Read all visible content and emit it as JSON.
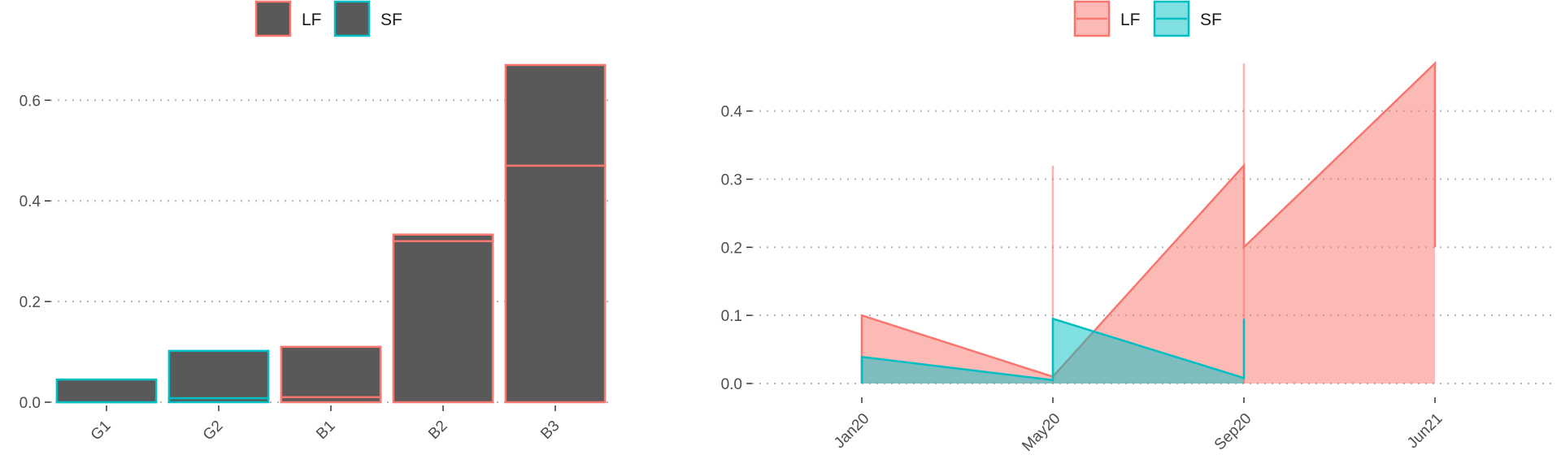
{
  "chart_data": [
    {
      "type": "bar",
      "stacked": true,
      "categories": [
        "G1",
        "G2",
        "B1",
        "B2",
        "B3"
      ],
      "series": [
        {
          "name": "LF",
          "values": [
            0.0,
            0.0,
            0.01,
            0.32,
            0.47
          ],
          "color": "#F8766D"
        },
        {
          "name": "SF",
          "values": [
            0.045,
            0.102,
            0.0,
            0.0,
            0.0
          ],
          "color": "#00BFC4"
        }
      ],
      "segments": [
        [
          {
            "series": "SF",
            "from": 0.0,
            "to": 0.0
          },
          {
            "series": "SF",
            "from": 0.0,
            "to": 0.045
          }
        ],
        [
          {
            "series": "SF",
            "from": 0.0,
            "to": 0.008
          },
          {
            "series": "SF",
            "from": 0.008,
            "to": 0.102
          }
        ],
        [
          {
            "series": "LF",
            "from": 0.0,
            "to": 0.01
          },
          {
            "series": "LF",
            "from": 0.01,
            "to": 0.11
          }
        ],
        [
          {
            "series": "LF",
            "from": 0.0,
            "to": 0.32
          },
          {
            "series": "LF",
            "from": 0.32,
            "to": 0.333
          }
        ],
        [
          {
            "series": "LF",
            "from": 0.0,
            "to": 0.47
          },
          {
            "series": "LF",
            "from": 0.47,
            "to": 0.67
          }
        ]
      ],
      "fill_color": "#595959",
      "yticks": [
        0.0,
        0.2,
        0.4,
        0.6
      ],
      "ytick_labels": [
        "0.0",
        "0.2",
        "0.4",
        "0.6"
      ],
      "ylim": [
        0,
        0.67
      ],
      "legend_position": "top",
      "grid": "horizontal-dotted"
    },
    {
      "type": "area",
      "x_labels": [
        "Jan20",
        "May20",
        "Sep20",
        "Jun21"
      ],
      "series": [
        {
          "name": "LF",
          "color": "#F8766D",
          "points": [
            [
              0,
              0.1
            ],
            [
              1,
              0.01
            ],
            [
              2,
              0.32
            ],
            [
              2,
              0.2
            ],
            [
              3,
              0.47
            ],
            [
              3,
              0.2
            ]
          ],
          "vertical_marker": [
            1,
            0.32
          ],
          "vertical_marker2": [
            2,
            0.47
          ]
        },
        {
          "name": "SF",
          "color": "#00BFC4",
          "points": [
            [
              0,
              0.039
            ],
            [
              1,
              0.005
            ],
            [
              1,
              0.095
            ],
            [
              2,
              0.008
            ],
            [
              2,
              0.095
            ]
          ]
        }
      ],
      "yticks": [
        0.0,
        0.1,
        0.2,
        0.3,
        0.4
      ],
      "ytick_labels": [
        "0.0",
        "0.1",
        "0.2",
        "0.3",
        "0.4"
      ],
      "ylim": [
        0,
        0.47
      ],
      "legend_position": "top",
      "grid": "horizontal-dotted"
    }
  ]
}
